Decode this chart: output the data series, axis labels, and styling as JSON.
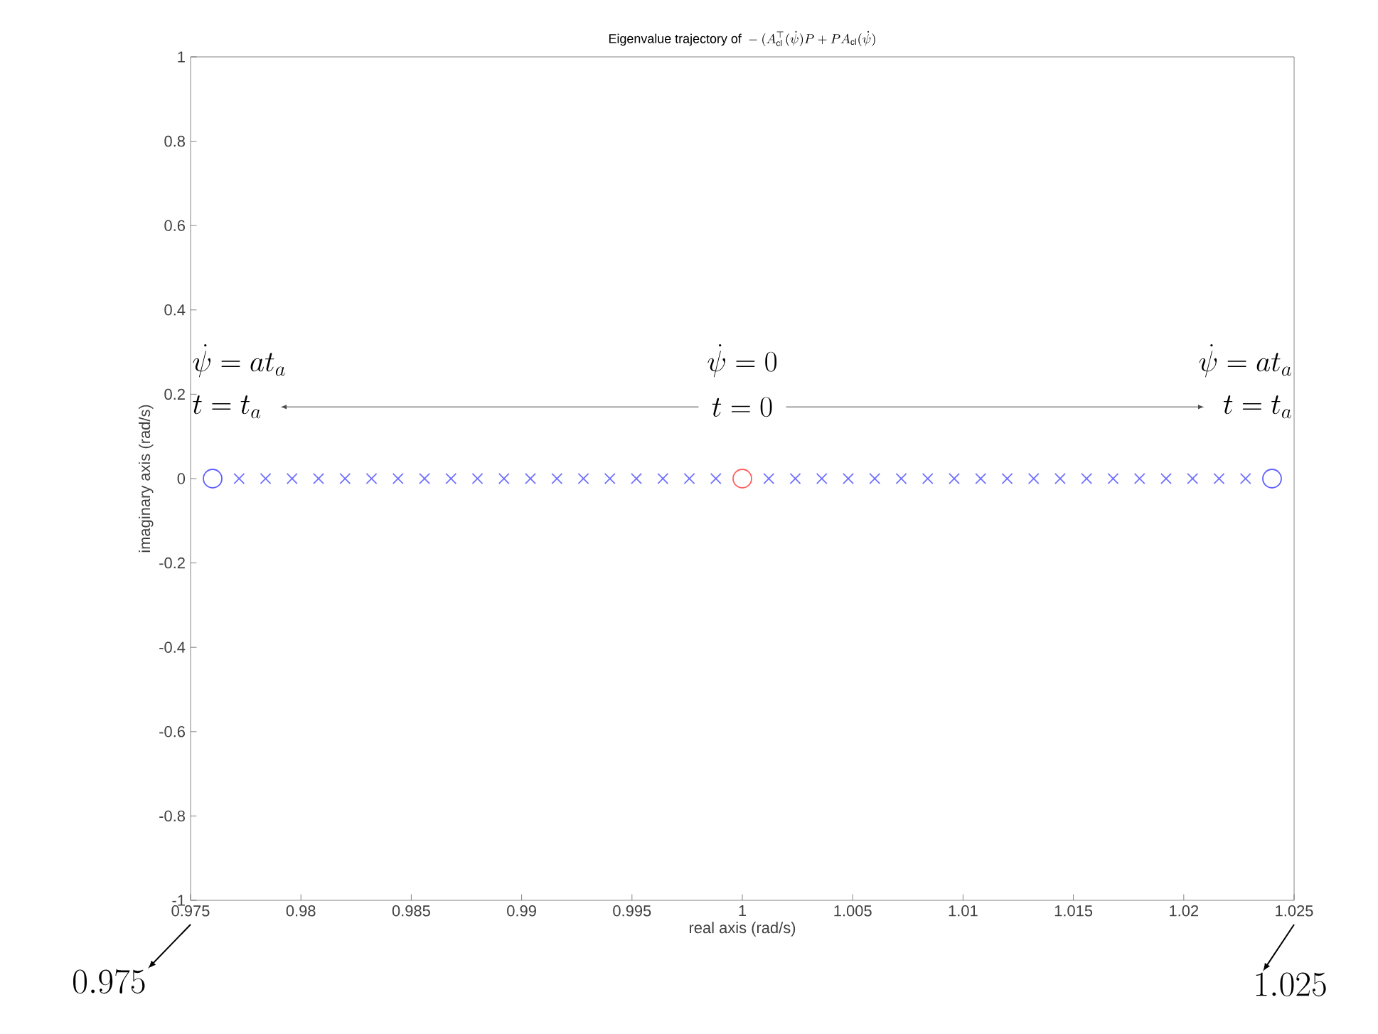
{
  "chart_data": {
    "type": "scatter",
    "title": "\\textrm{Eigenvalue trajectory of }-(A_{\\mathrm{cl}}^{\\top}(\\dot{\\psi})P+PA_{\\mathrm{cl}}(\\dot{\\psi})",
    "xlabel": "real axis (rad/s)",
    "ylabel": "imaginary axis (rad/s)",
    "xlim": [
      0.975,
      1.025
    ],
    "ylim": [
      -1,
      1
    ],
    "xticks": [
      0.975,
      0.98,
      0.985,
      0.99,
      0.995,
      1,
      1.005,
      1.01,
      1.015,
      1.02,
      1.025
    ],
    "yticks": [
      -1,
      -0.8,
      -0.6,
      -0.4,
      -0.2,
      0,
      0.2,
      0.4,
      0.6,
      0.8,
      1
    ],
    "grid": false,
    "series": [
      {
        "color": "#7070ff",
        "marker": "cross",
        "x": [
          0.9772,
          0.9784,
          0.9796,
          0.9808,
          0.982,
          0.9832,
          0.9844,
          0.9856,
          0.9868,
          0.988,
          0.9892,
          0.9904,
          0.9916,
          0.9928,
          0.994,
          0.9952,
          0.9964,
          0.9976,
          0.9988,
          1.0012,
          1.0024,
          1.0036,
          1.0048,
          1.006,
          1.0072,
          1.0084,
          1.0096,
          1.0108,
          1.012,
          1.0132,
          1.0144,
          1.0156,
          1.0168,
          1.018,
          1.0192,
          1.0204,
          1.0216,
          1.0228
        ],
        "values": [
          0,
          0,
          0,
          0,
          0,
          0,
          0,
          0,
          0,
          0,
          0,
          0,
          0,
          0,
          0,
          0,
          0,
          0,
          0,
          0,
          0,
          0,
          0,
          0,
          0,
          0,
          0,
          0,
          0,
          0,
          0,
          0,
          0,
          0,
          0,
          0,
          0,
          0
        ]
      },
      {
        "color": "#6060ff",
        "marker": "circle",
        "x": [
          0.976,
          1.024
        ],
        "values": [
          0,
          0
        ]
      },
      {
        "color": "#ff6060",
        "marker": "circle",
        "x": [
          1.0
        ],
        "values": [
          0
        ]
      }
    ],
    "annotations": [
      "\\dot{\\psi} = at_a",
      "t = t_a",
      "\\dot{\\psi} = 0",
      "t = 0",
      "\\dot{\\psi} = at_a",
      "t = t_a",
      "0.975",
      "1.025"
    ]
  }
}
